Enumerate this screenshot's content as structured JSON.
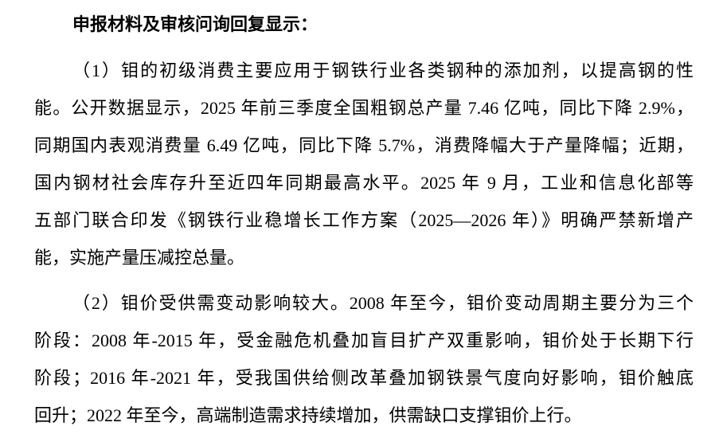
{
  "colors": {
    "text": "#000000",
    "background": "#ffffff"
  },
  "document": {
    "heading": "申报材料及审核问询回复显示：",
    "paragraph1": {
      "lines": [
        "（1）钼的初级消费主要应用于钢铁行业各类钢种的添加剂，以提高钢的性",
        "能。公开数据显示，2025 年前三季度全国粗钢总产量 7.46 亿吨，同比下降 2.9%，",
        "同期国内表观消费量 6.49 亿吨，同比下降 5.7%，消费降幅大于产量降幅；近期，",
        "国内钢材社会库存升至近四年同期最高水平。2025 年 9 月，工业和信息化部等",
        "五部门联合印发《钢铁行业稳增长工作方案（2025—2026 年）》明确严禁新增产",
        "能，实施产量压减控总量。"
      ]
    },
    "paragraph2": {
      "lines": [
        "（2）钼价受供需变动影响较大。2008 年至今，钼价变动周期主要分为三个",
        "阶段：2008 年-2015 年，受金融危机叠加盲目扩产双重影响，钼价处于长期下行",
        "阶段；2016 年-2021 年，受我国供给侧改革叠加钢铁景气度向好影响，钼价触底",
        "回升；2022 年至今，高端制造需求持续增加，供需缺口支撑钼价上行。"
      ]
    }
  }
}
